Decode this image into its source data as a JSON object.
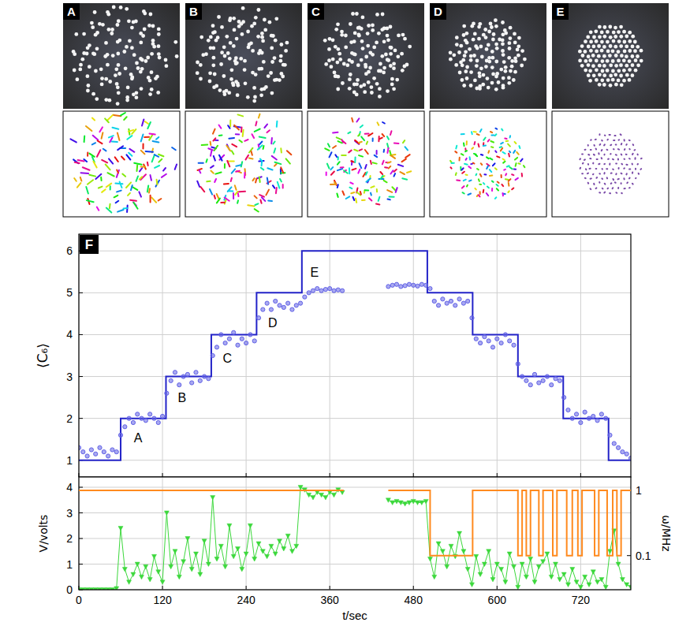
{
  "panels": [
    "A",
    "B",
    "C",
    "D",
    "E"
  ],
  "chart_data": [
    {
      "type": "scatter",
      "title": "F",
      "ylabel": "⟨C₆⟩",
      "xlim": [
        0,
        792
      ],
      "xticks": [
        0,
        120,
        240,
        360,
        480,
        600,
        720
      ],
      "ylim": [
        0.6,
        6.4
      ],
      "yticks": [
        1,
        2,
        3,
        4,
        5,
        6
      ],
      "grid": true,
      "tick_labels": "y",
      "series": [
        {
          "type": "line",
          "color": "#2323c8",
          "line_style": "solid",
          "x": [
            0,
            60,
            60,
            125,
            125,
            190,
            190,
            255,
            255,
            320,
            320,
            500,
            500,
            565,
            565,
            630,
            630,
            695,
            695,
            760,
            760,
            792
          ],
          "values": [
            1,
            1,
            2,
            2,
            3,
            3,
            4,
            4,
            5,
            5,
            6,
            6,
            5,
            5,
            4,
            4,
            3,
            3,
            2,
            2,
            1,
            1
          ]
        },
        {
          "type": "scatter",
          "color": "#6262e6",
          "marker": "circle",
          "x": [
            0,
            6,
            12,
            18,
            24,
            30,
            36,
            42,
            48,
            54,
            60,
            66,
            72,
            78,
            84,
            90,
            96,
            102,
            108,
            114,
            120,
            126,
            132,
            138,
            144,
            150,
            156,
            162,
            168,
            174,
            180,
            186,
            192,
            198,
            204,
            210,
            216,
            222,
            228,
            234,
            240,
            246,
            252,
            258,
            264,
            270,
            276,
            282,
            288,
            294,
            300,
            306,
            312,
            318,
            324,
            330,
            336,
            342,
            348,
            354,
            360,
            366,
            372,
            378,
            444,
            450,
            456,
            462,
            468,
            474,
            480,
            486,
            492,
            498,
            504,
            510,
            516,
            522,
            528,
            534,
            540,
            546,
            552,
            558,
            564,
            570,
            576,
            582,
            588,
            594,
            600,
            606,
            612,
            618,
            624,
            630,
            636,
            642,
            648,
            654,
            660,
            666,
            672,
            678,
            684,
            690,
            696,
            702,
            708,
            714,
            720,
            726,
            732,
            738,
            744,
            750,
            756,
            762,
            768,
            774,
            780,
            786,
            792
          ],
          "values": [
            1.3,
            1.2,
            1.1,
            1.25,
            1.15,
            1.3,
            1.2,
            1.1,
            1.25,
            1.2,
            1.6,
            1.8,
            2.0,
            1.9,
            2.1,
            2.0,
            1.95,
            2.1,
            2.0,
            1.9,
            2.05,
            2.6,
            2.9,
            3.1,
            2.8,
            3.0,
            3.05,
            2.85,
            3.1,
            2.9,
            3.0,
            2.95,
            3.5,
            3.7,
            4.0,
            3.8,
            3.9,
            4.05,
            3.75,
            3.9,
            3.8,
            4.0,
            3.85,
            4.4,
            4.6,
            4.75,
            4.6,
            4.8,
            4.7,
            4.65,
            4.75,
            4.6,
            4.7,
            4.75,
            4.9,
            5.0,
            5.05,
            5.1,
            5.05,
            5.08,
            5.1,
            5.05,
            5.07,
            5.05,
            5.15,
            5.18,
            5.2,
            5.15,
            5.17,
            5.2,
            5.18,
            5.16,
            5.2,
            5.18,
            5.1,
            4.8,
            4.7,
            4.85,
            4.75,
            4.8,
            4.7,
            4.85,
            4.75,
            4.8,
            4.4,
            3.9,
            3.8,
            3.95,
            3.85,
            3.7,
            3.9,
            3.8,
            4.0,
            3.85,
            3.75,
            3.3,
            3.0,
            2.9,
            2.8,
            3.05,
            2.85,
            2.9,
            3.0,
            2.8,
            2.95,
            2.9,
            2.5,
            2.2,
            2.0,
            2.1,
            1.9,
            2.15,
            2.0,
            2.05,
            1.95,
            2.1,
            2.0,
            1.6,
            1.4,
            1.3,
            1.2,
            1.15,
            1.05
          ]
        }
      ],
      "annotations": [
        {
          "text": "A",
          "x": 85,
          "y": 1.55
        },
        {
          "text": "B",
          "x": 148,
          "y": 2.5
        },
        {
          "text": "C",
          "x": 213,
          "y": 3.45
        },
        {
          "text": "D",
          "x": 278,
          "y": 4.3
        },
        {
          "text": "E",
          "x": 338,
          "y": 5.5
        }
      ]
    },
    {
      "type": "line",
      "xlabel": "t/sec",
      "ylabel": "V/volts",
      "xlim": [
        0,
        792
      ],
      "xticks": [
        0,
        120,
        240,
        360,
        480,
        600,
        720
      ],
      "ylim": [
        0,
        4.4
      ],
      "yticks": [
        0,
        1,
        2,
        3,
        4
      ],
      "grid": true,
      "series": [
        {
          "color": "#3cd83c",
          "marker": "triangle",
          "line_style": "solid",
          "x": [
            0,
            6,
            12,
            18,
            24,
            30,
            36,
            42,
            48,
            54,
            60,
            66,
            72,
            78,
            84,
            90,
            96,
            102,
            108,
            114,
            120,
            126,
            132,
            138,
            144,
            150,
            156,
            162,
            168,
            174,
            180,
            186,
            192,
            198,
            204,
            210,
            216,
            222,
            228,
            234,
            240,
            246,
            252,
            258,
            264,
            270,
            276,
            282,
            288,
            294,
            300,
            306,
            312,
            318,
            324,
            330,
            336,
            342,
            348,
            354,
            360,
            366,
            372,
            378,
            412,
            444,
            450,
            456,
            462,
            468,
            474,
            480,
            486,
            492,
            498,
            504,
            510,
            516,
            522,
            528,
            534,
            540,
            546,
            552,
            558,
            564,
            570,
            576,
            582,
            588,
            594,
            600,
            606,
            612,
            618,
            624,
            630,
            636,
            642,
            648,
            654,
            660,
            666,
            672,
            678,
            684,
            690,
            696,
            702,
            708,
            714,
            720,
            726,
            732,
            738,
            744,
            750,
            756,
            762,
            768,
            774,
            780,
            786,
            792
          ],
          "values": [
            0,
            0,
            0,
            0,
            0,
            0,
            0,
            0,
            0,
            0.05,
            2.4,
            0.8,
            0.3,
            0.6,
            1.0,
            0.5,
            0.9,
            0.4,
            1.3,
            0.7,
            0.3,
            3.0,
            0.9,
            1.5,
            0.5,
            1.1,
            2.0,
            0.8,
            1.4,
            0.6,
            1.9,
            1.0,
            3.6,
            1.2,
            1.7,
            0.9,
            2.5,
            1.3,
            1.6,
            0.8,
            1.4,
            2.5,
            1.2,
            1.8,
            1.5,
            1.3,
            1.7,
            1.4,
            1.9,
            1.6,
            2.1,
            1.5,
            1.7,
            4.0,
            3.9,
            3.7,
            3.6,
            3.8,
            3.7,
            3.6,
            3.8,
            3.7,
            3.9,
            3.8,
            null,
            3.5,
            3.4,
            3.45,
            3.4,
            3.35,
            3.4,
            3.45,
            3.4,
            3.4,
            3.45,
            1.2,
            0.5,
            1.8,
            1.5,
            0.9,
            1.7,
            1.3,
            2.2,
            1.5,
            0.8,
            0.2,
            1.3,
            0.6,
            1.0,
            1.5,
            0.4,
            1.0,
            0.8,
            0.3,
            1.4,
            0.9,
            0.1,
            1.0,
            0.5,
            1.2,
            0.3,
            0.9,
            1.1,
            1.4,
            0.5,
            1.0,
            0.4,
            0.6,
            0.2,
            0.8,
            0.3,
            0.1,
            0.5,
            0.2,
            0.7,
            0.3,
            0.4,
            0.1,
            1.5,
            2.3,
            1.0,
            0.4,
            0.2,
            0.1
          ]
        }
      ]
    },
    {
      "type": "line",
      "ylabel": "ω/MHz",
      "log": "y",
      "xlim": [
        0,
        792
      ],
      "ylim": [
        0.03,
        1.6
      ],
      "yticks": [
        0.1,
        1
      ],
      "tick_labels": "y",
      "series": [
        {
          "color": "#ff8a1e",
          "line_style": "solid",
          "x": [
            0,
            380,
            412,
            444,
            504,
            504,
            565,
            565,
            630,
            630,
            636,
            636,
            642,
            642,
            648,
            648,
            660,
            660,
            666,
            666,
            680,
            680,
            686,
            686,
            700,
            700,
            708,
            708,
            716,
            716,
            722,
            722,
            740,
            740,
            746,
            746,
            758,
            758,
            766,
            766,
            772,
            772,
            778,
            778,
            792
          ],
          "values": [
            1,
            1,
            null,
            1,
            1,
            0.1,
            0.1,
            1,
            1,
            0.1,
            0.1,
            1,
            1,
            0.1,
            0.1,
            1,
            1,
            0.1,
            0.1,
            1,
            1,
            0.1,
            0.1,
            1,
            1,
            0.1,
            0.1,
            1,
            1,
            0.1,
            0.1,
            1,
            1,
            0.1,
            0.1,
            1,
            1,
            0.1,
            0.1,
            1,
            1,
            0.1,
            0.1,
            1,
            1
          ]
        }
      ]
    }
  ]
}
